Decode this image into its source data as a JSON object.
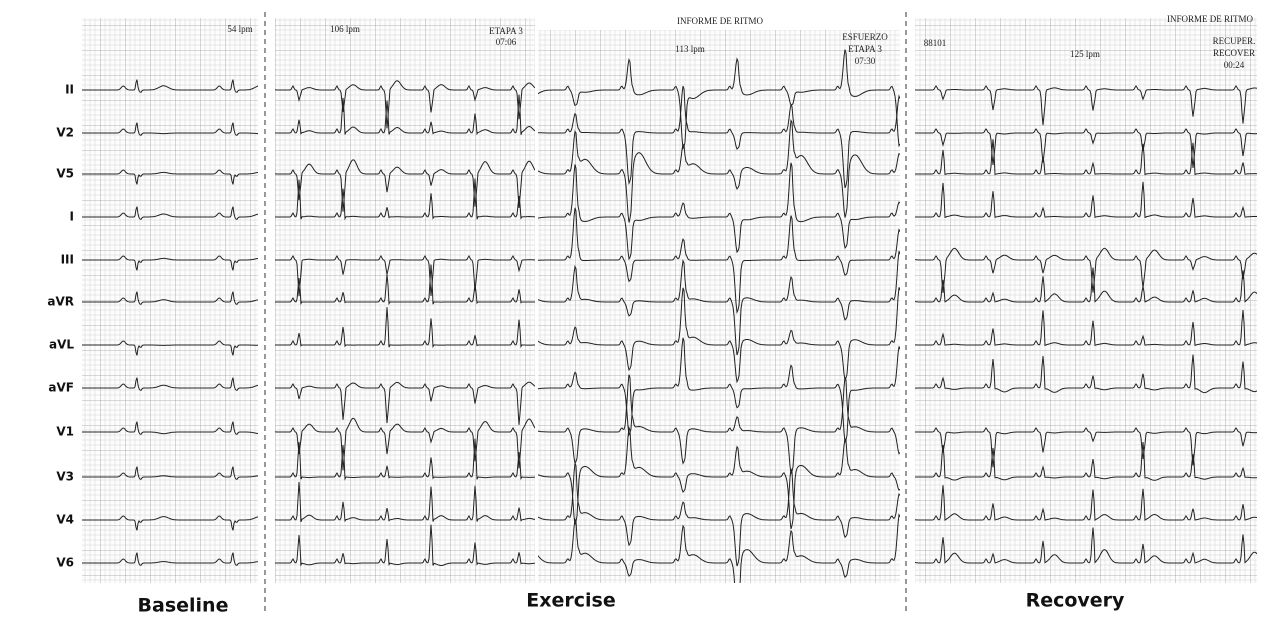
{
  "leads": [
    "II",
    "V2",
    "V5",
    "I",
    "III",
    "aVR",
    "aVL",
    "aVF",
    "V1",
    "V3",
    "V4",
    "V6"
  ],
  "sections": [
    "Baseline",
    "Exercise",
    "Recovery"
  ],
  "strips": [
    {
      "annotations": [
        "54 lpm"
      ]
    },
    {
      "annotations": [
        "106 lpm",
        "ETAPA 3",
        "07:06"
      ]
    },
    {
      "annotations": [
        "INFORME DE RITMO",
        "113 lpm",
        "ESFUERZO",
        "ETAPA 3",
        "07:30"
      ]
    },
    {
      "annotations": [
        "INFORME DE RITMO",
        "88101",
        "125 lpm",
        "RECUPER.",
        "RECOVER",
        "00:24"
      ]
    }
  ]
}
